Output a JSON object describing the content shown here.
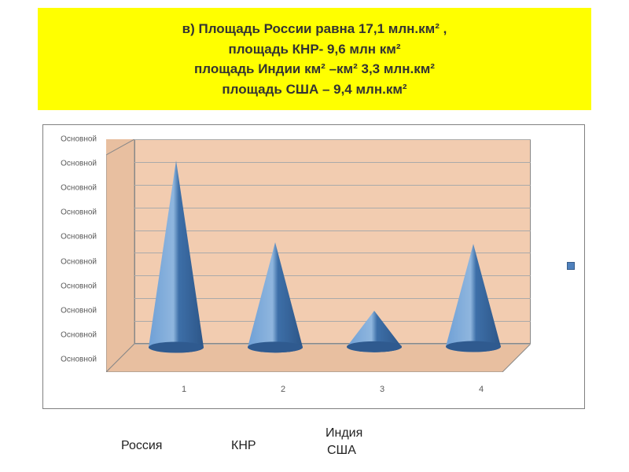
{
  "header": {
    "lines": [
      "в)  Площадь России равна 17,1 млн.км² ,",
      "площадь КНР- 9,6 млн км²",
      "площадь Индии км² –км²  3,3 млн.км²",
      "площадь США – 9,4 млн.км²"
    ],
    "background": "#ffff00",
    "text_color": "#333333",
    "font_size": 17
  },
  "chart": {
    "type": "cone-3d",
    "background_color": "#ffffff",
    "wall_color": "#f2ccb0",
    "side_wall_color": "#e8bfa0",
    "floor_color": "#e8bfa0",
    "grid_color": "#aaaaaa",
    "border_color": "#808080",
    "y_axis": {
      "labels": [
        "Основной",
        "Основной",
        "Основной",
        "Основной",
        "Основной",
        "Основной",
        "Основной",
        "Основной",
        "Основной",
        "Основной"
      ],
      "label_color": "#5a5a5a",
      "label_fontsize": 10,
      "tick_count": 10
    },
    "x_axis": {
      "labels": [
        "1",
        "2",
        "3",
        "4"
      ],
      "label_color": "#5a5a5a",
      "label_fontsize": 11
    },
    "series": {
      "color_light": "#6fa0d6",
      "color_dark": "#3d6fa8",
      "base_ellipse": "#2f5a8f",
      "values": [
        17.1,
        9.6,
        3.3,
        9.4
      ],
      "max_value": 18,
      "cone_base_width": 70
    },
    "legend_marker_color": "#4f81bd"
  },
  "bottom_labels": {
    "items": [
      "Россия",
      "КНР",
      "Индия",
      "США"
    ],
    "font_size": 16,
    "color": "#222222"
  }
}
